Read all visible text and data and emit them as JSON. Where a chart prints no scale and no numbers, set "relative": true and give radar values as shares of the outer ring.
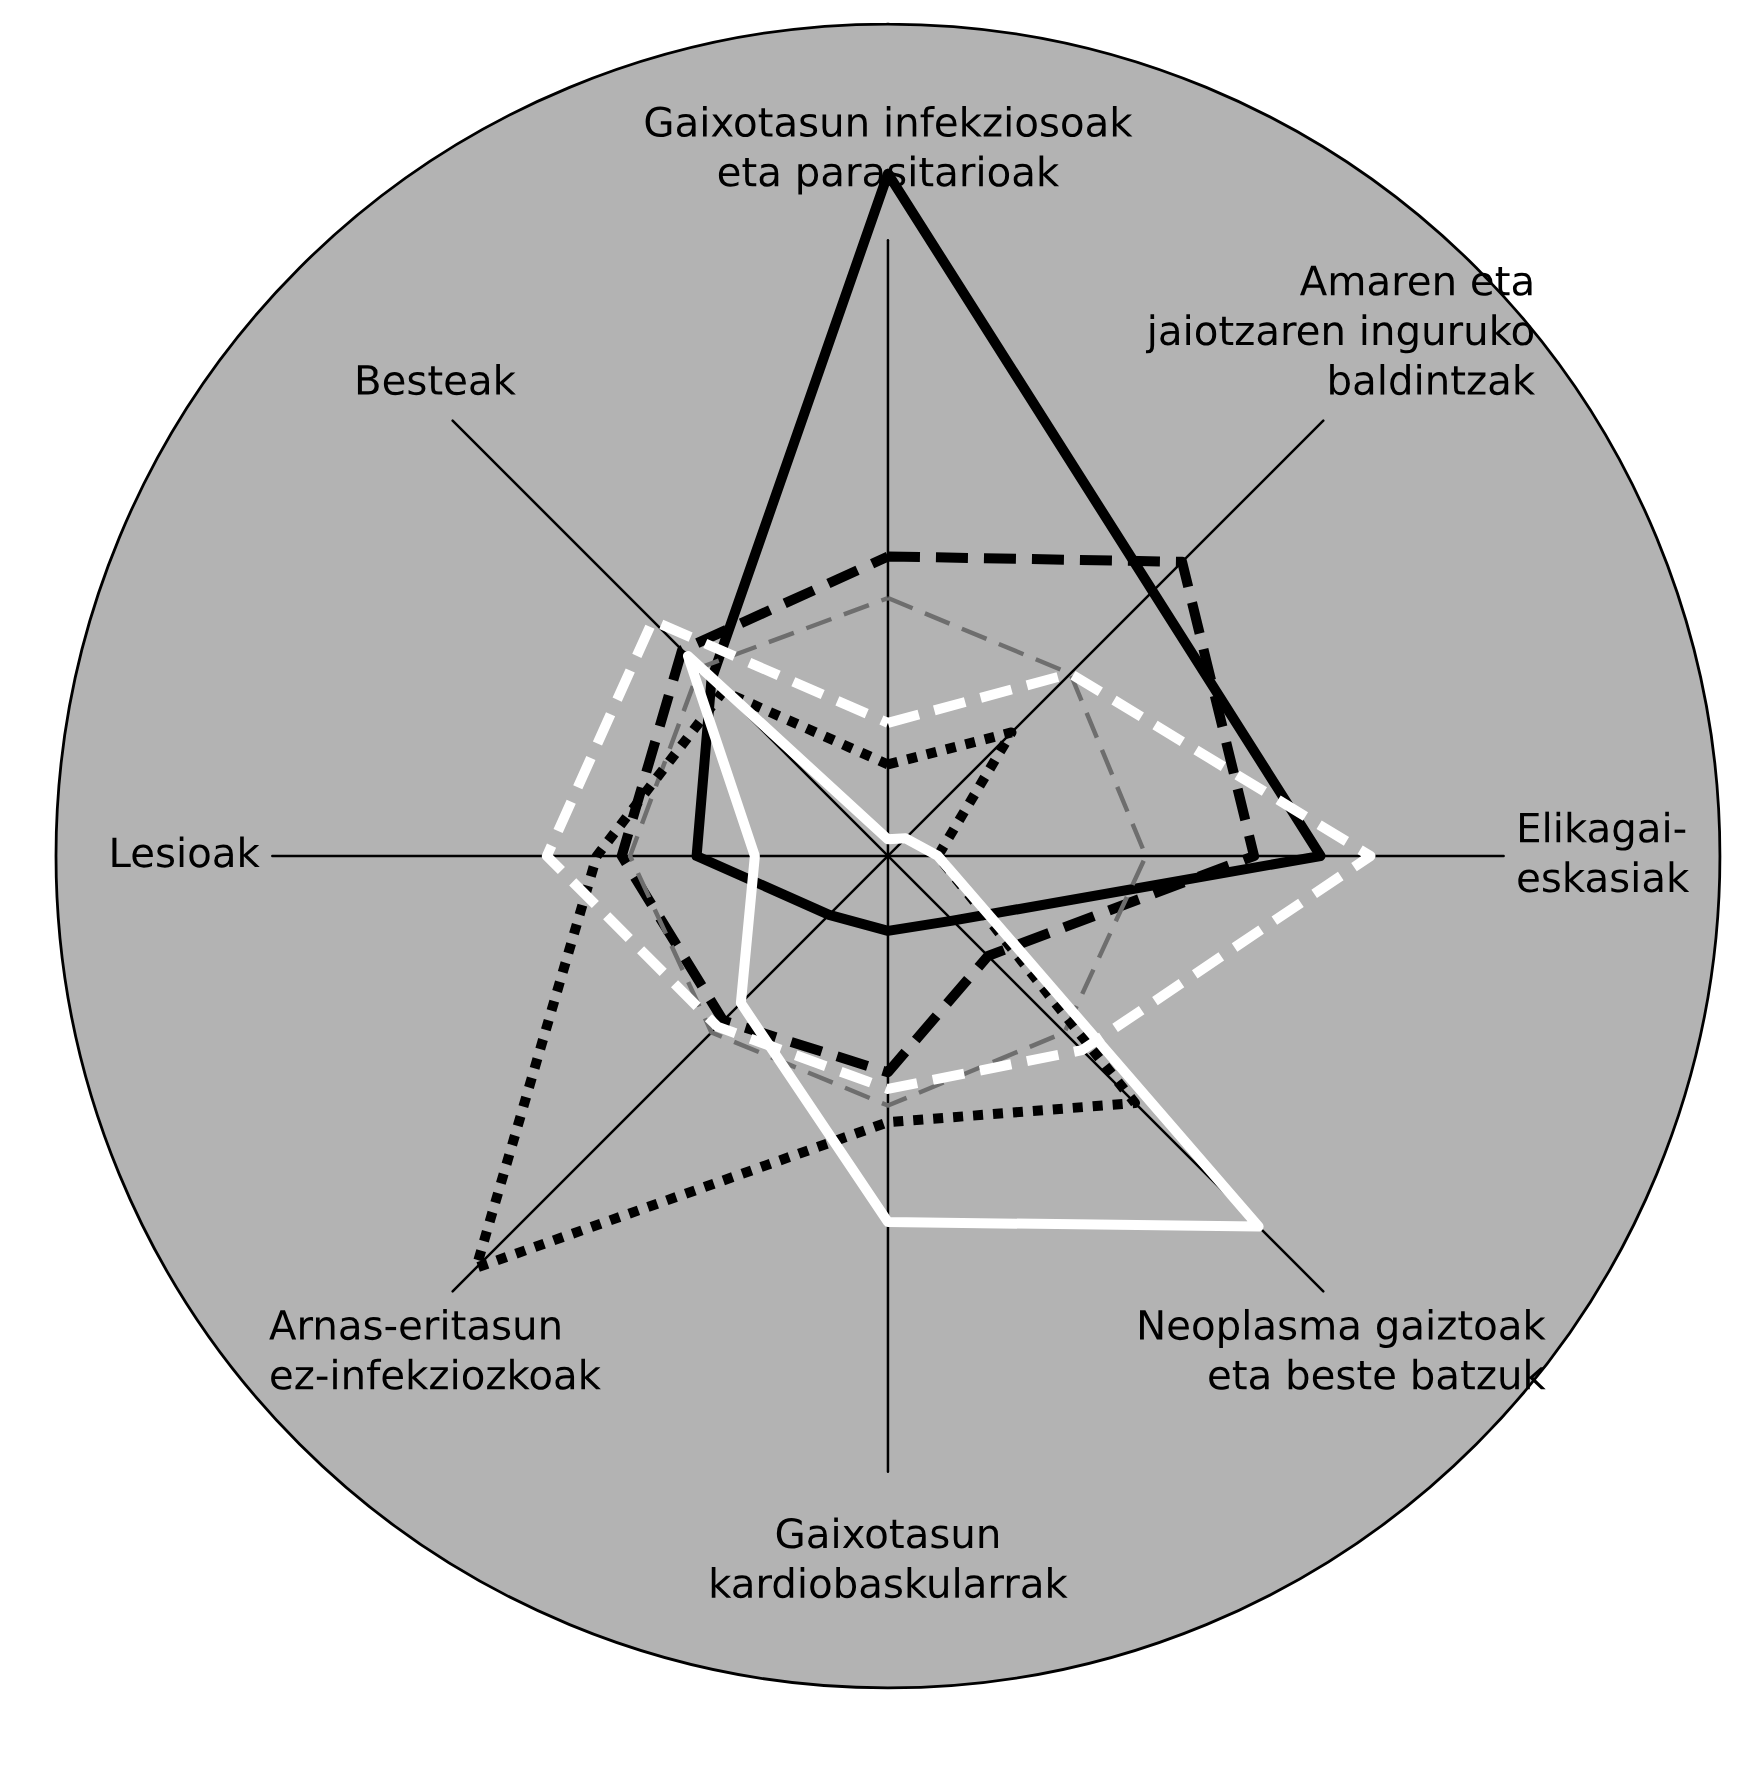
{
  "chart_data": {
    "type": "radar",
    "relative": true,
    "grid": "x",
    "categories": [
      "Gaixotasun infekziosoak\neta parasitarioak",
      "Amaren eta\njaiotzaren inguruko\nbaldintzak",
      "Elikagai-\neskasiak",
      "Neoplasma gaiztoak\neta beste batzuk",
      "Gaixotasun\nkardiobaskularrak",
      "Arnas-eritasun\nez-infekziozkoak",
      "Lesioak",
      "Besteak"
    ],
    "series": [
      {
        "color": "#000000",
        "line_style": "solid",
        "values": [
          0.82,
          0.45,
          0.52,
          0.11,
          0.09,
          0.1,
          0.23,
          0.3
        ]
      },
      {
        "color": "#000000",
        "line_style": "dashed",
        "values": [
          0.36,
          0.5,
          0.44,
          0.17,
          0.26,
          0.28,
          0.32,
          0.35
        ]
      },
      {
        "color": "#6e6e6e",
        "line_style": "dashed",
        "values": [
          0.31,
          0.31,
          0.31,
          0.3,
          0.3,
          0.3,
          0.31,
          0.32
        ]
      },
      {
        "color": "#000000",
        "line_style": "dotted",
        "values": [
          0.11,
          0.21,
          0.06,
          0.42,
          0.32,
          0.7,
          0.35,
          0.28
        ]
      },
      {
        "color": "#ffffff",
        "line_style": "solid",
        "values": [
          0.02,
          0.03,
          0.06,
          0.63,
          0.44,
          0.25,
          0.16,
          0.34
        ]
      },
      {
        "color": "#ffffff",
        "line_style": "dashed",
        "values": [
          0.16,
          0.31,
          0.58,
          0.33,
          0.28,
          0.29,
          0.41,
          0.4
        ]
      }
    ]
  }
}
